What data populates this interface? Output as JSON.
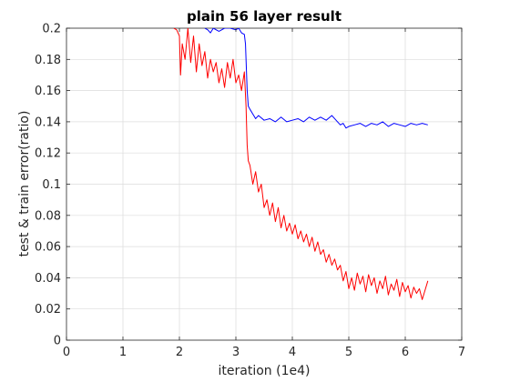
{
  "chart_data": {
    "type": "line",
    "title": "plain 56 layer result",
    "xlabel": "iteration (1e4)",
    "ylabel": "test & train error(ratio)",
    "xlim": [
      0,
      7
    ],
    "ylim": [
      0,
      0.2
    ],
    "xticks": [
      0,
      1,
      2,
      3,
      4,
      5,
      6,
      7
    ],
    "yticks": [
      0,
      0.02,
      0.04,
      0.06,
      0.08,
      0.1,
      0.12,
      0.14,
      0.16,
      0.18,
      0.2
    ],
    "xtick_labels": [
      "0",
      "1",
      "2",
      "3",
      "4",
      "5",
      "6",
      "7"
    ],
    "ytick_labels": [
      "0",
      "0.02",
      "0.04",
      "0.06",
      "0.08",
      "0.1",
      "0.12",
      "0.14",
      "0.16",
      "0.18",
      "0.2"
    ],
    "grid": true,
    "series": [
      {
        "color": "#0000ff",
        "x": [
          2.45,
          2.5,
          2.55,
          2.6,
          2.7,
          2.8,
          2.9,
          3.0,
          3.05,
          3.1,
          3.15,
          3.17,
          3.2,
          3.22,
          3.25,
          3.3,
          3.35,
          3.4,
          3.5,
          3.6,
          3.7,
          3.8,
          3.9,
          4.0,
          4.1,
          4.2,
          4.3,
          4.4,
          4.5,
          4.6,
          4.7,
          4.8,
          4.85,
          4.9,
          4.95,
          5.0,
          5.1,
          5.2,
          5.3,
          5.4,
          5.5,
          5.6,
          5.7,
          5.8,
          5.9,
          6.0,
          6.1,
          6.2,
          6.3,
          6.4
        ],
        "y": [
          0.2,
          0.199,
          0.197,
          0.2,
          0.198,
          0.2,
          0.2,
          0.199,
          0.2,
          0.197,
          0.196,
          0.19,
          0.16,
          0.15,
          0.148,
          0.145,
          0.142,
          0.144,
          0.141,
          0.142,
          0.14,
          0.143,
          0.14,
          0.141,
          0.142,
          0.14,
          0.143,
          0.141,
          0.143,
          0.141,
          0.144,
          0.14,
          0.138,
          0.139,
          0.136,
          0.137,
          0.138,
          0.139,
          0.137,
          0.139,
          0.138,
          0.14,
          0.137,
          0.139,
          0.138,
          0.137,
          0.139,
          0.138,
          0.139,
          0.138
        ]
      },
      {
        "color": "#ff0000",
        "x": [
          1.9,
          1.95,
          2.0,
          2.02,
          2.05,
          2.1,
          2.15,
          2.2,
          2.25,
          2.3,
          2.35,
          2.4,
          2.45,
          2.5,
          2.55,
          2.6,
          2.65,
          2.7,
          2.75,
          2.8,
          2.85,
          2.9,
          2.95,
          3.0,
          3.05,
          3.1,
          3.15,
          3.18,
          3.2,
          3.22,
          3.25,
          3.3,
          3.35,
          3.4,
          3.45,
          3.5,
          3.55,
          3.6,
          3.65,
          3.7,
          3.75,
          3.8,
          3.85,
          3.9,
          3.95,
          4.0,
          4.05,
          4.1,
          4.15,
          4.2,
          4.25,
          4.3,
          4.35,
          4.4,
          4.45,
          4.5,
          4.55,
          4.6,
          4.65,
          4.7,
          4.75,
          4.8,
          4.85,
          4.9,
          4.95,
          5.0,
          5.05,
          5.1,
          5.15,
          5.2,
          5.25,
          5.3,
          5.35,
          5.4,
          5.45,
          5.5,
          5.55,
          5.6,
          5.65,
          5.7,
          5.75,
          5.8,
          5.85,
          5.9,
          5.95,
          6.0,
          6.05,
          6.1,
          6.15,
          6.2,
          6.25,
          6.3,
          6.35,
          6.4
        ],
        "y": [
          0.2,
          0.199,
          0.195,
          0.17,
          0.19,
          0.18,
          0.2,
          0.178,
          0.195,
          0.172,
          0.19,
          0.176,
          0.185,
          0.168,
          0.18,
          0.172,
          0.178,
          0.165,
          0.174,
          0.162,
          0.178,
          0.168,
          0.18,
          0.165,
          0.17,
          0.16,
          0.172,
          0.15,
          0.125,
          0.115,
          0.112,
          0.1,
          0.108,
          0.095,
          0.1,
          0.085,
          0.09,
          0.08,
          0.088,
          0.076,
          0.085,
          0.072,
          0.08,
          0.07,
          0.075,
          0.068,
          0.074,
          0.065,
          0.07,
          0.063,
          0.068,
          0.06,
          0.066,
          0.057,
          0.063,
          0.055,
          0.058,
          0.05,
          0.055,
          0.048,
          0.052,
          0.045,
          0.048,
          0.038,
          0.044,
          0.033,
          0.04,
          0.032,
          0.043,
          0.036,
          0.041,
          0.031,
          0.042,
          0.035,
          0.04,
          0.03,
          0.038,
          0.033,
          0.041,
          0.029,
          0.036,
          0.032,
          0.039,
          0.028,
          0.037,
          0.031,
          0.035,
          0.027,
          0.034,
          0.03,
          0.033,
          0.026,
          0.032,
          0.038
        ]
      }
    ]
  }
}
